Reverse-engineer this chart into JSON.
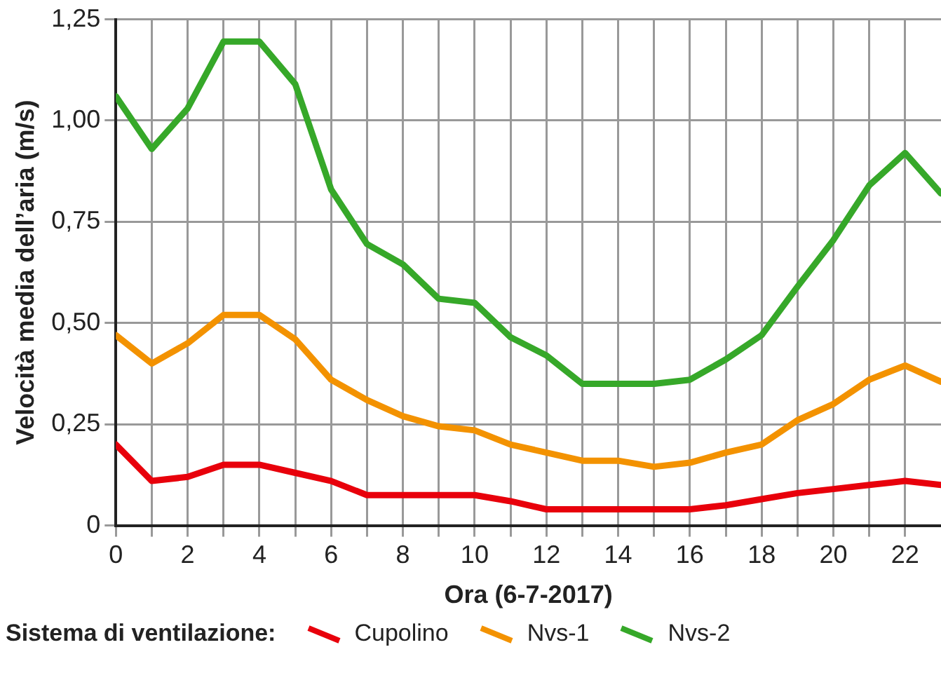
{
  "chart_data": {
    "type": "line",
    "xlabel": "Ora (6-7-2017)",
    "ylabel": "Velocità media dell’aria (m/s)",
    "legend_title": "Sistema di ventilazione:",
    "legend": "bottom",
    "grid": true,
    "marker": "none",
    "line_style": "solid",
    "x": [
      0,
      1,
      2,
      3,
      4,
      5,
      6,
      7,
      8,
      9,
      10,
      11,
      12,
      13,
      14,
      15,
      16,
      17,
      18,
      19,
      20,
      21,
      22,
      23
    ],
    "xlim": [
      0,
      23
    ],
    "xticks": [
      0,
      {
        "value": 1,
        "label": null
      },
      2,
      {
        "value": 3,
        "label": null
      },
      4,
      {
        "value": 5,
        "label": null
      },
      6,
      {
        "value": 7,
        "label": null
      },
      8,
      {
        "value": 9,
        "label": null
      },
      10,
      {
        "value": 11,
        "label": null
      },
      12,
      {
        "value": 13,
        "label": null
      },
      14,
      {
        "value": 15,
        "label": null
      },
      16,
      {
        "value": 17,
        "label": null
      },
      18,
      {
        "value": 19,
        "label": null
      },
      20,
      {
        "value": 21,
        "label": null
      },
      22
    ],
    "ylim": [
      0,
      1.25
    ],
    "yticks": [
      0,
      {
        "value": 0.25,
        "label": "0,25"
      },
      {
        "value": 0.5,
        "label": "0,50"
      },
      {
        "value": 0.75,
        "label": "0,75"
      },
      {
        "value": 1,
        "label": "1,00"
      },
      {
        "value": 1.25,
        "label": "1,25"
      }
    ],
    "series": [
      {
        "name": "Cupolino",
        "color": "#e8000b",
        "values": [
          0.2,
          0.11,
          0.12,
          0.15,
          0.15,
          0.13,
          0.11,
          0.075,
          0.075,
          0.075,
          0.075,
          0.06,
          0.04,
          0.04,
          0.04,
          0.04,
          0.04,
          0.05,
          0.065,
          0.08,
          0.09,
          0.1,
          0.11,
          0.1
        ]
      },
      {
        "name": "Nvs-1",
        "color": "#f39200",
        "values": [
          0.47,
          0.4,
          0.45,
          0.52,
          0.52,
          0.46,
          0.36,
          0.31,
          0.27,
          0.245,
          0.235,
          0.2,
          0.18,
          0.16,
          0.16,
          0.145,
          0.155,
          0.18,
          0.2,
          0.26,
          0.3,
          0.36,
          0.395,
          0.355
        ]
      },
      {
        "name": "Nvs-2",
        "color": "#36a829",
        "values": [
          1.06,
          0.93,
          1.03,
          1.195,
          1.195,
          1.09,
          0.83,
          0.695,
          0.645,
          0.56,
          0.55,
          0.465,
          0.42,
          0.35,
          0.35,
          0.35,
          0.36,
          0.41,
          0.47,
          0.59,
          0.705,
          0.84,
          0.92,
          0.82
        ]
      }
    ]
  }
}
